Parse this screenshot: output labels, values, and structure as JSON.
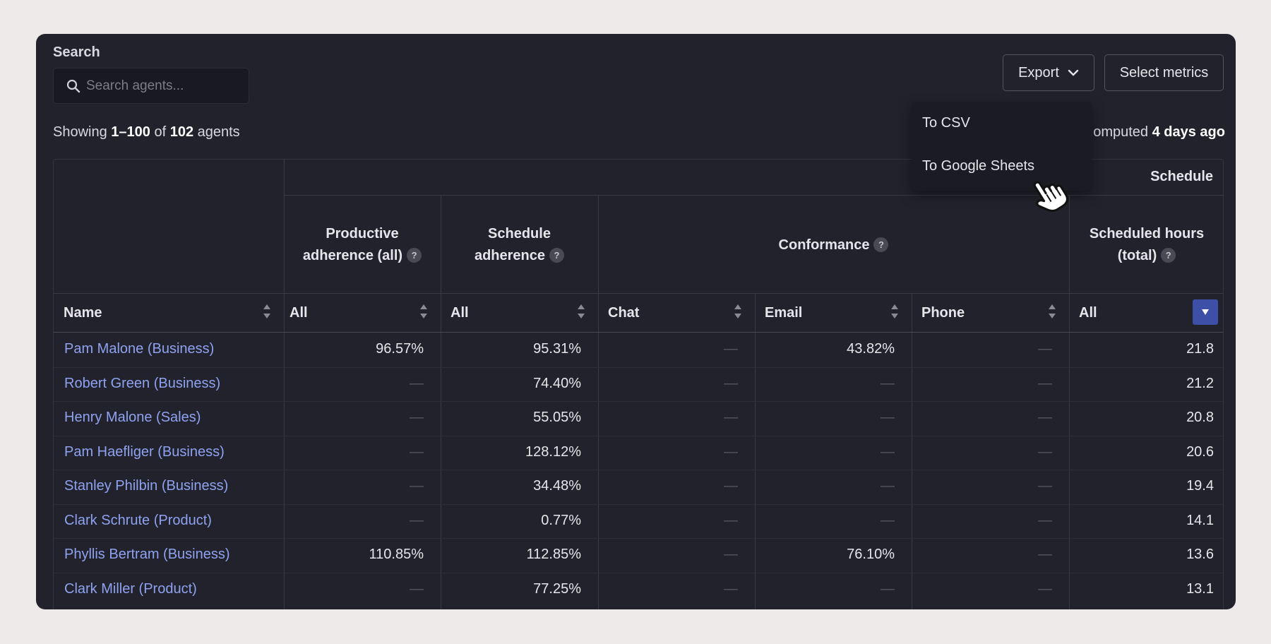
{
  "search": {
    "label": "Search",
    "placeholder": "Search agents..."
  },
  "showing": {
    "prefix": "Showing ",
    "range": "1–100",
    "mid": " of ",
    "total": "102",
    "suffix": " agents"
  },
  "computed": {
    "prefix": "omputed ",
    "value": "4 days ago"
  },
  "buttons": {
    "export": "Export",
    "select_metrics": "Select metrics"
  },
  "export_menu": {
    "items": [
      "To CSV",
      "To Google Sheets"
    ]
  },
  "table": {
    "group_schedule": "Schedule",
    "groups": {
      "productive": [
        "Productive",
        "adherence (all)"
      ],
      "schedule_adherence": [
        "Schedule",
        "adherence"
      ],
      "conformance": "Conformance",
      "scheduled_hours": [
        "Scheduled hours",
        "(total)"
      ]
    },
    "help_glyph": "?",
    "columns": [
      "Name",
      "All",
      "All",
      "Chat",
      "Email",
      "Phone",
      "All"
    ],
    "dash": "—",
    "rows": [
      {
        "name": "Pam Malone (Business)",
        "prod": "96.57%",
        "sched": "95.31%",
        "chat": "—",
        "email": "43.82%",
        "phone": "—",
        "hours": "21.8"
      },
      {
        "name": "Robert Green (Business)",
        "prod": "—",
        "sched": "74.40%",
        "chat": "—",
        "email": "—",
        "phone": "—",
        "hours": "21.2"
      },
      {
        "name": "Henry Malone (Sales)",
        "prod": "—",
        "sched": "55.05%",
        "chat": "—",
        "email": "—",
        "phone": "—",
        "hours": "20.8"
      },
      {
        "name": "Pam Haefliger (Business)",
        "prod": "—",
        "sched": "128.12%",
        "chat": "—",
        "email": "—",
        "phone": "—",
        "hours": "20.6"
      },
      {
        "name": "Stanley Philbin (Business)",
        "prod": "—",
        "sched": "34.48%",
        "chat": "—",
        "email": "—",
        "phone": "—",
        "hours": "19.4"
      },
      {
        "name": "Clark Schrute (Product)",
        "prod": "—",
        "sched": "0.77%",
        "chat": "—",
        "email": "—",
        "phone": "—",
        "hours": "14.1"
      },
      {
        "name": "Phyllis Bertram (Business)",
        "prod": "110.85%",
        "sched": "112.85%",
        "chat": "—",
        "email": "76.10%",
        "phone": "—",
        "hours": "13.6"
      },
      {
        "name": "Clark Miller (Product)",
        "prod": "—",
        "sched": "77.25%",
        "chat": "—",
        "email": "—",
        "phone": "—",
        "hours": "13.1"
      }
    ]
  },
  "colors": {
    "link": "#8ea2f0",
    "accent": "#3d4fa6",
    "background": "#22222c"
  }
}
